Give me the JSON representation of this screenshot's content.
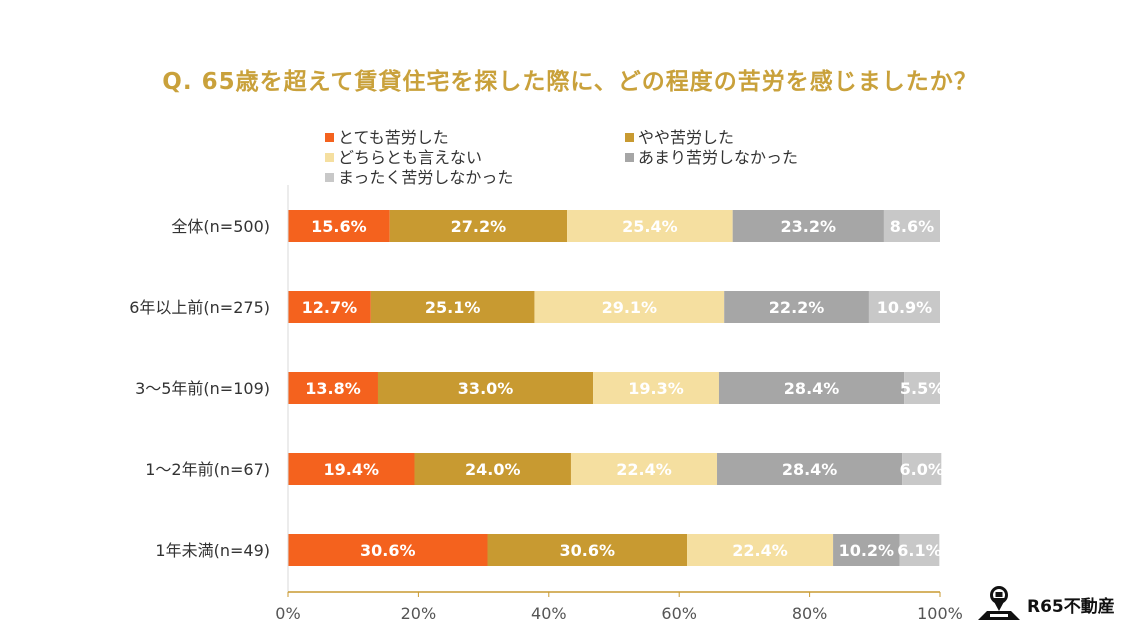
{
  "title": "Q. 65歳を超えて賃貸住宅を探した際に、どの程度の苦労を感じましたか？",
  "brand": "R65不動産",
  "chart_data": {
    "type": "bar",
    "orientation": "horizontal",
    "stacked": true,
    "title": "Q. 65歳を超えて賃貸住宅を探した際に、どの程度の苦労を感じましたか？",
    "categories": [
      "全体(n=500)",
      "6年以上前(n=275)",
      "3～5年前(n=109)",
      "1～2年前(n=67)",
      "1年未満(n=49)"
    ],
    "series": [
      {
        "name": "とても苦労した",
        "color": "#f4621e",
        "values": [
          15.6,
          12.7,
          13.8,
          19.4,
          30.6
        ]
      },
      {
        "name": "やや苦労した",
        "color": "#c89a31",
        "values": [
          27.2,
          25.1,
          33.0,
          24.0,
          30.6
        ]
      },
      {
        "name": "どちらとも言えない",
        "color": "#f5dfa0",
        "values": [
          25.4,
          29.1,
          19.3,
          22.4,
          22.4
        ]
      },
      {
        "name": "あまり苦労しなかった",
        "color": "#a6a6a6",
        "values": [
          23.2,
          22.2,
          28.4,
          28.4,
          10.2
        ]
      },
      {
        "name": "まったく苦労しなかった",
        "color": "#c8c8c8",
        "values": [
          8.6,
          10.9,
          5.5,
          6.0,
          6.1
        ]
      }
    ],
    "data_labels": [
      [
        "15.6%",
        "12.7%",
        "13.8%",
        "19.4%",
        "30.6%"
      ],
      [
        "27.2%",
        "25.1%",
        "33.0%",
        "24.0%",
        "30.6%"
      ],
      [
        "25.4%",
        "29.1%",
        "19.3%",
        "22.4%",
        "22.4%"
      ],
      [
        "23.2%",
        "22.2%",
        "28.4%",
        "28.4%",
        "10.2%"
      ],
      [
        "8.6%",
        "10.9%",
        "5.5%",
        "6.0%",
        "6.1%"
      ]
    ],
    "xlim": [
      0,
      100
    ],
    "xticks": [
      "0%",
      "20%",
      "40%",
      "60%",
      "80%",
      "100%"
    ],
    "xlabel": "",
    "ylabel": "",
    "grid": false,
    "legend_position": "top"
  }
}
